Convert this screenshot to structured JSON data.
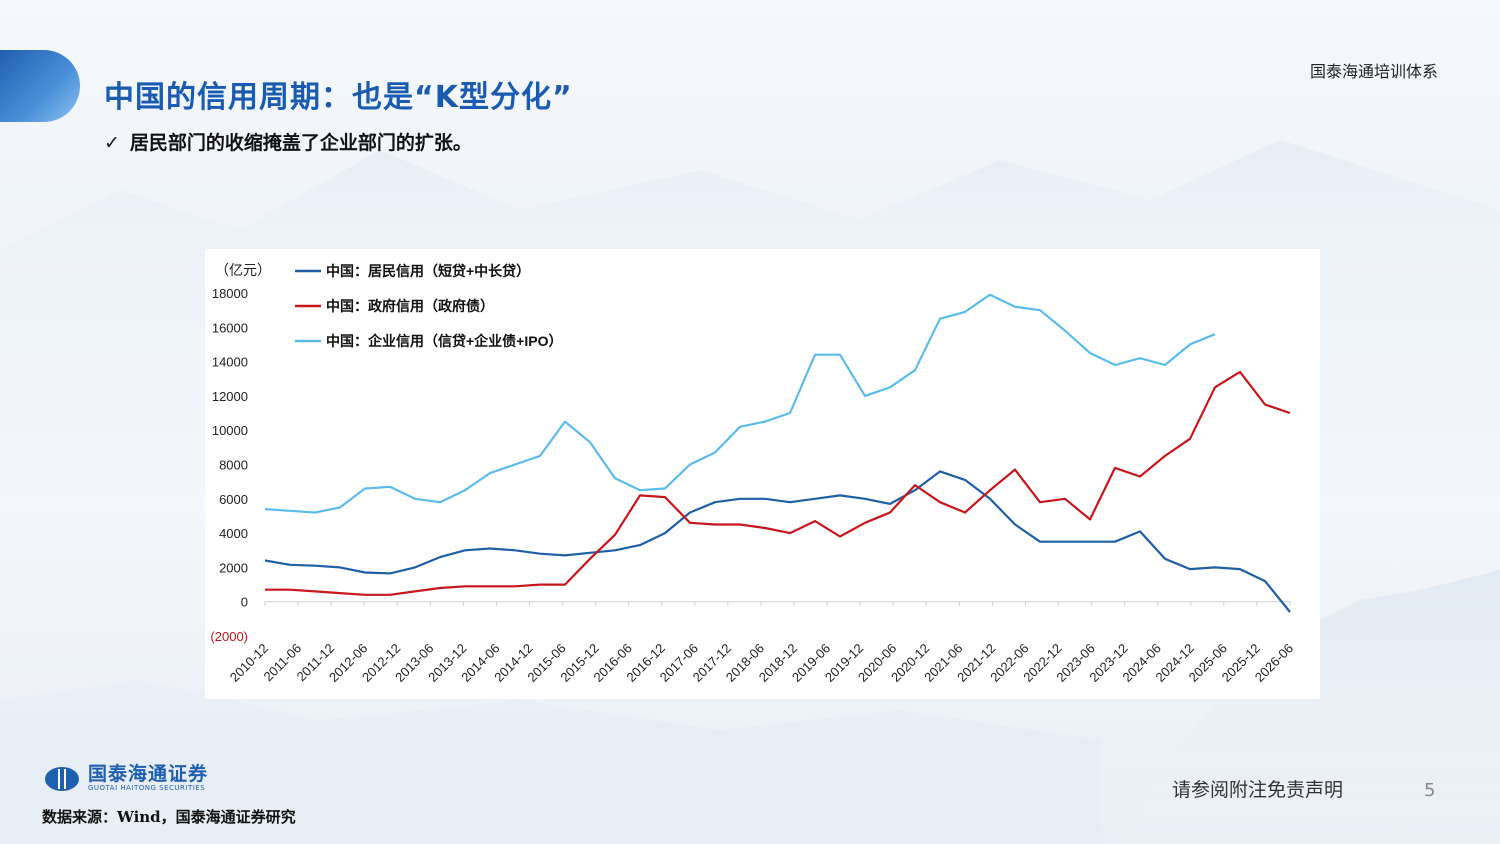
{
  "header": {
    "title": "中国的信用周期：也是“K型分化”",
    "brand": "国泰海通培训体系",
    "bullet_mark": "✓",
    "bullet_text": "居民部门的收缩掩盖了企业部门的扩张。"
  },
  "footer": {
    "logo_cn": "国泰海通证券",
    "logo_en": "GUOTAI HAITONG SECURITIES",
    "source": "数据来源：Wind，国泰海通证券研究",
    "disclaimer": "请参阅附注免责声明",
    "page_number": "5"
  },
  "colors": {
    "title_blue": "#1a5bb2",
    "household": "#1f5fa6",
    "government": "#c8161d",
    "corporate": "#5bbcea",
    "negative_tick": "#c8161d"
  },
  "chart_data": {
    "type": "line",
    "unit_label": "（亿元）",
    "ylim": [
      -2000,
      18000
    ],
    "yticks": [
      -2000,
      0,
      2000,
      4000,
      6000,
      8000,
      10000,
      12000,
      14000,
      16000,
      18000
    ],
    "ytick_labels": [
      "(2000)",
      "0",
      "2000",
      "4000",
      "6000",
      "8000",
      "10000",
      "12000",
      "14000",
      "16000",
      "18000"
    ],
    "xtick_labels": [
      "2010-12",
      "2011-06",
      "2011-12",
      "2012-06",
      "2012-12",
      "2013-06",
      "2013-12",
      "2014-06",
      "2014-12",
      "2015-06",
      "2015-12",
      "2016-06",
      "2016-12",
      "2017-06",
      "2017-12",
      "2018-06",
      "2018-12",
      "2019-06",
      "2019-12",
      "2020-06",
      "2020-12",
      "2021-06",
      "2021-12",
      "2022-06",
      "2022-12",
      "2023-06",
      "2023-12",
      "2024-06",
      "2024-12",
      "2025-06",
      "2025-12",
      "2026-06"
    ],
    "legend_position": "top-left",
    "grid": false,
    "series": [
      {
        "name": "中国：居民信用（短贷+中长贷）",
        "color": "#1f5fa6",
        "values": [
          2400,
          2150,
          2100,
          2000,
          1700,
          1650,
          2000,
          2600,
          3000,
          3100,
          3000,
          2800,
          2700,
          2850,
          3000,
          3300,
          4000,
          5200,
          5800,
          6000,
          6000,
          5800,
          6000,
          6200,
          6000,
          5700,
          6500,
          7600,
          7100,
          6000,
          4500,
          3500,
          3500,
          3500,
          3500,
          4100,
          2500,
          1900,
          2000,
          1900,
          1200,
          -600
        ]
      },
      {
        "name": "中国：政府信用（政府债）",
        "color": "#c8161d",
        "values": [
          700,
          700,
          600,
          500,
          400,
          400,
          600,
          800,
          900,
          900,
          900,
          1000,
          1000,
          2500,
          3900,
          6200,
          6100,
          4600,
          4500,
          4500,
          4300,
          4000,
          4700,
          3800,
          4600,
          5200,
          6800,
          5800,
          5200,
          6500,
          7700,
          5800,
          6000,
          4800,
          7800,
          7300,
          8500,
          9500,
          12500,
          13400,
          11500,
          11000
        ]
      },
      {
        "name": "中国：企业信用（信贷+企业债+IPO）",
        "color": "#5bbcea",
        "values": [
          5400,
          5300,
          5200,
          5500,
          6600,
          6700,
          6000,
          5800,
          6500,
          7500,
          8000,
          8500,
          10500,
          9300,
          7200,
          6500,
          6600,
          8000,
          8700,
          10200,
          10500,
          11000,
          14400,
          14400,
          12000,
          12500,
          13500,
          16500,
          16900,
          17900,
          17200,
          17000,
          15800,
          14500,
          13800,
          14200,
          13800,
          15000,
          15600,
          null,
          null,
          null
        ]
      }
    ]
  }
}
